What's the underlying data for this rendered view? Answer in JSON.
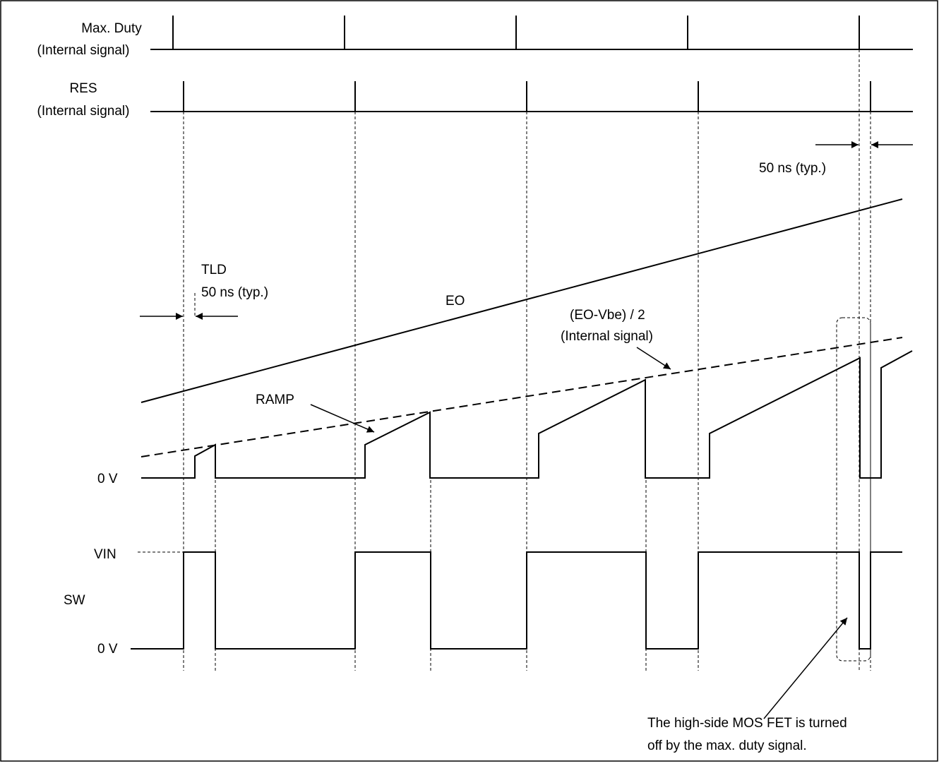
{
  "labels": {
    "max_duty_line1": "Max. Duty",
    "max_duty_line2": "(Internal signal)",
    "res_line1": "RES",
    "res_line2": "(Internal signal)",
    "ns50_top": "50 ns (typ.)",
    "tld": "TLD",
    "tld_ns": "50 ns (typ.)",
    "eo": "EO",
    "eovbe_line1": "(EO-Vbe) / 2",
    "eovbe_line2": "(Internal signal)",
    "ramp": "RAMP",
    "zero_v_ramp": "0 V",
    "vin": "VIN",
    "sw": "SW",
    "zero_v_sw": "0 V",
    "note_line1": "The high-side MOS FET is turned",
    "note_line2": "off by the max. duty signal."
  },
  "colors": {
    "line": "#000000",
    "background": "#ffffff"
  }
}
